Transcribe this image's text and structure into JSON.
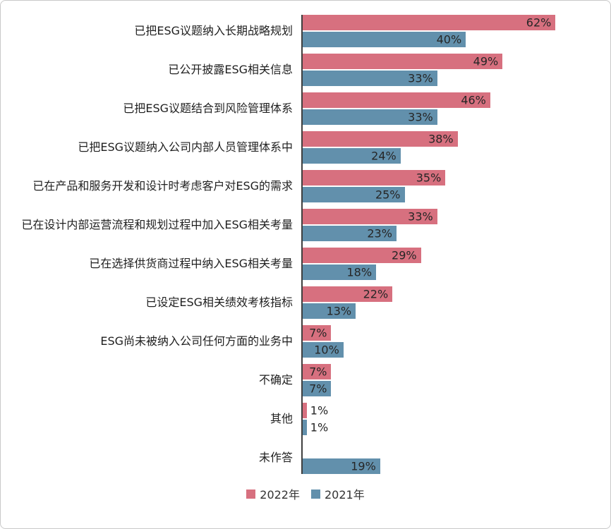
{
  "chart_data": {
    "type": "bar",
    "orientation": "horizontal",
    "title": "",
    "xlabel": "",
    "ylabel": "",
    "xlim": [
      0,
      65
    ],
    "grid": false,
    "legend_position": "bottom",
    "value_suffix": "%",
    "categories": [
      "已把ESG议题纳入长期战略规划",
      "已公开披露ESG相关信息",
      "已把ESG议题结合到风险管理体系",
      "已把ESG议题纳入公司内部人员管理体系中",
      "已在产品和服务开发和设计时考虑客户对ESG的需求",
      "已在设计内部运营流程和规划过程中加入ESG相关考量",
      "已在选择供货商过程中纳入ESG相关考量",
      "已设定ESG相关绩效考核指标",
      "ESG尚未被纳入公司任何方面的业务中",
      "不确定",
      "其他",
      "未作答"
    ],
    "series": [
      {
        "name": "2022年",
        "color": "#d7707f",
        "values": [
          62,
          49,
          46,
          38,
          35,
          33,
          29,
          22,
          7,
          7,
          1,
          null
        ]
      },
      {
        "name": "2021年",
        "color": "#6290ac",
        "values": [
          40,
          33,
          33,
          24,
          25,
          23,
          18,
          13,
          10,
          7,
          1,
          19
        ]
      }
    ]
  }
}
